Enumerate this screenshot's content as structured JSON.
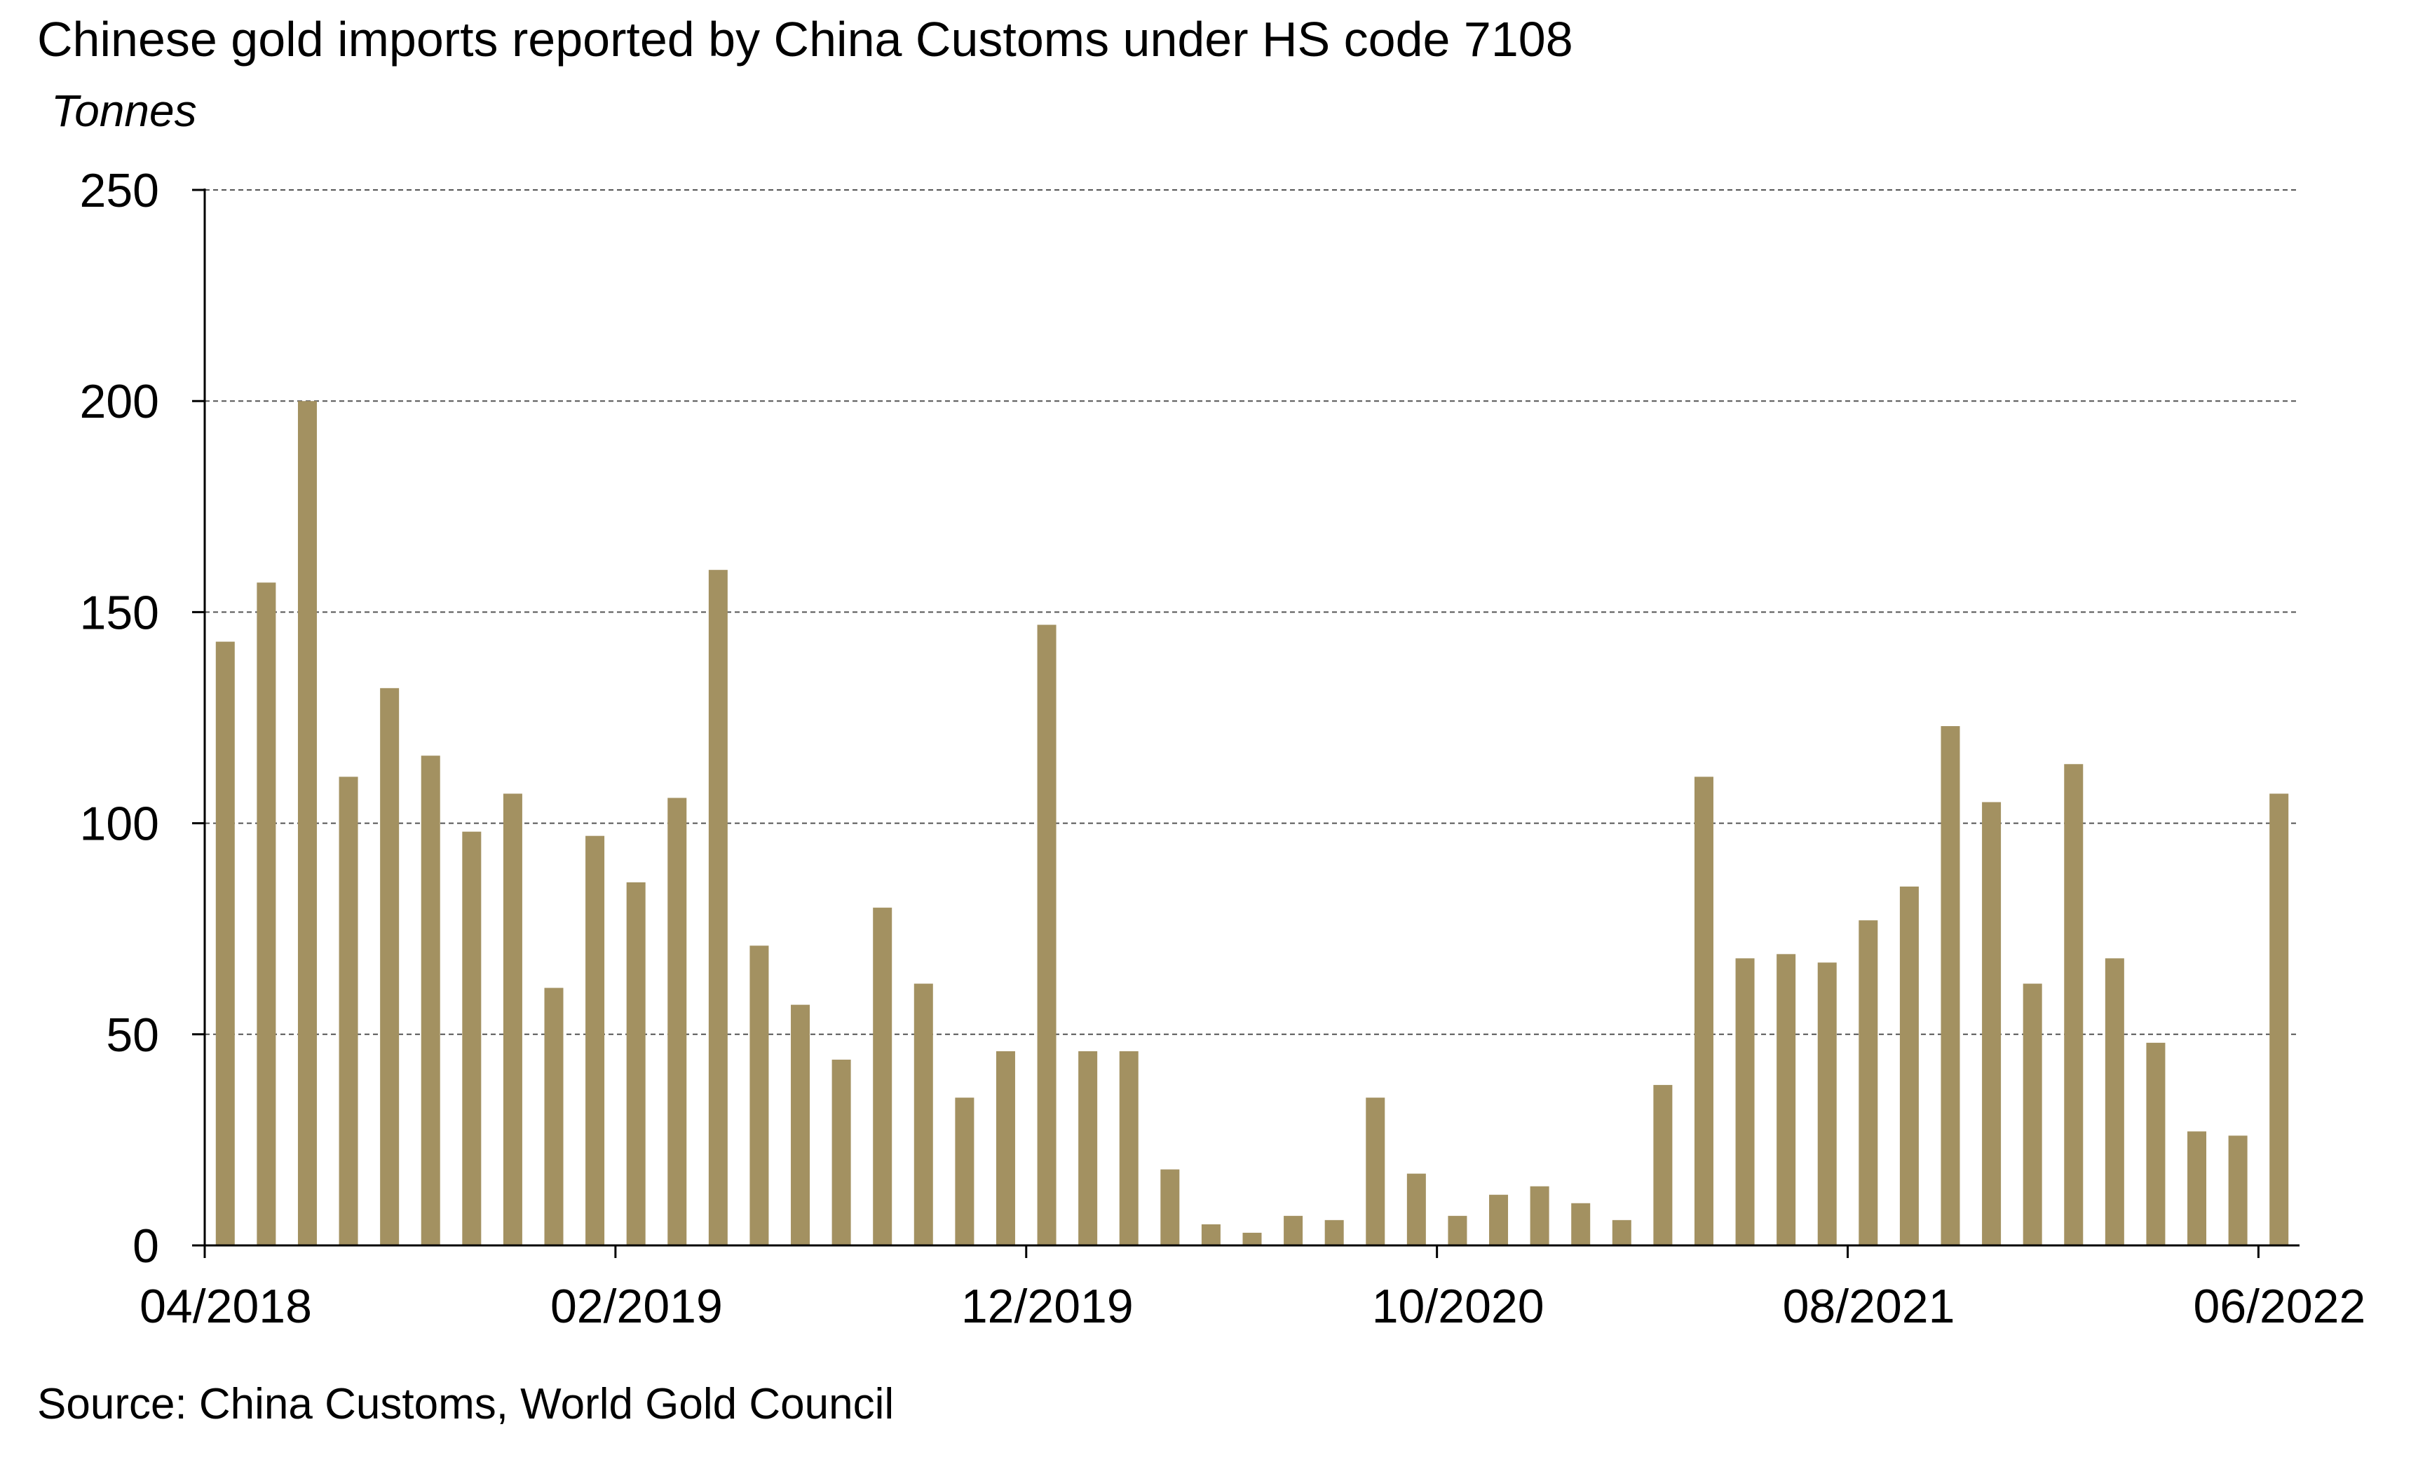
{
  "chart_data": {
    "type": "bar",
    "title": "Chinese gold imports reported by China Customs under HS code 7108",
    "ylabel": "Tonnes",
    "source": "Source: China Customs, World Gold Council",
    "ylim": [
      0,
      250
    ],
    "yticks": [
      0,
      50,
      100,
      150,
      200,
      250
    ],
    "xtick_labels": [
      "04/2018",
      "02/2019",
      "12/2019",
      "10/2020",
      "08/2021",
      "06/2022"
    ],
    "xtick_every": 10,
    "grid": true,
    "legend": "none",
    "bar_color": "#A39161",
    "categories": [
      "04/2018",
      "05/2018",
      "06/2018",
      "07/2018",
      "08/2018",
      "09/2018",
      "10/2018",
      "11/2018",
      "12/2018",
      "01/2019",
      "02/2019",
      "03/2019",
      "04/2019",
      "05/2019",
      "06/2019",
      "07/2019",
      "08/2019",
      "09/2019",
      "10/2019",
      "11/2019",
      "12/2019",
      "01/2020",
      "02/2020",
      "03/2020",
      "04/2020",
      "05/2020",
      "06/2020",
      "07/2020",
      "08/2020",
      "09/2020",
      "10/2020",
      "11/2020",
      "12/2020",
      "01/2021",
      "02/2021",
      "03/2021",
      "04/2021",
      "05/2021",
      "06/2021",
      "07/2021",
      "08/2021",
      "09/2021",
      "10/2021",
      "11/2021",
      "12/2021",
      "01/2022",
      "02/2022",
      "03/2022",
      "04/2022",
      "05/2022",
      "06/2022"
    ],
    "values": [
      143,
      157,
      200,
      111,
      132,
      116,
      98,
      107,
      61,
      97,
      86,
      106,
      160,
      71,
      57,
      44,
      80,
      62,
      35,
      46,
      147,
      46,
      46,
      18,
      5,
      3,
      7,
      6,
      35,
      17,
      7,
      12,
      14,
      10,
      6,
      38,
      111,
      68,
      69,
      67,
      77,
      85,
      123,
      105,
      62,
      114,
      68,
      48,
      27,
      26,
      107
    ]
  }
}
